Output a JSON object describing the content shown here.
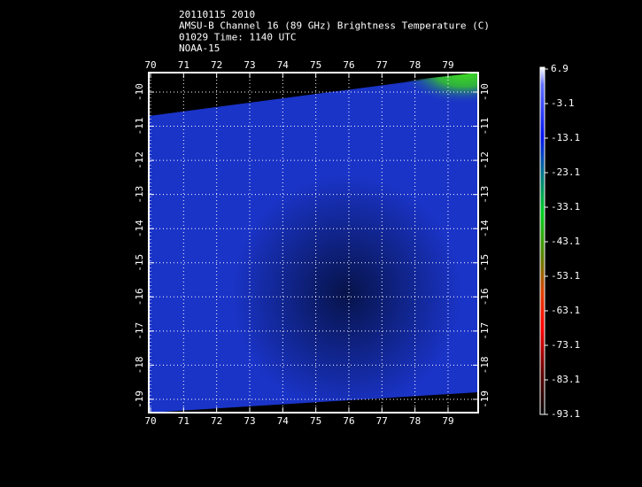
{
  "header": {
    "lines": [
      "20110115 2010",
      "AMSU-B Channel 16 (89 GHz) Brightness Temperature (C)",
      "01029 Time: 1140 UTC",
      "NOAA-15"
    ]
  },
  "lon_ticks": [
    70,
    71,
    72,
    73,
    74,
    75,
    76,
    77,
    78,
    79
  ],
  "lat_ticks": [
    -10,
    -11,
    -12,
    -13,
    -14,
    -15,
    -16,
    -17,
    -18,
    -19
  ],
  "colorbar": {
    "labels": [
      6.9,
      -3.1,
      -13.1,
      -23.1,
      -33.1,
      -43.1,
      -53.1,
      -63.1,
      -73.1,
      -83.1,
      -93.1
    ]
  }
}
